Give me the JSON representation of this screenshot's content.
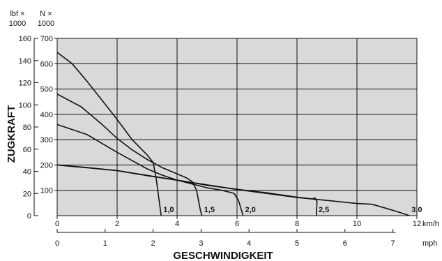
{
  "chart_data": {
    "type": "line",
    "title": "",
    "ylabel": "ZUGKRAFT",
    "xlabel": "GESCHWINDIGKEIT",
    "grid": true,
    "colors": {
      "plot_background": "#d9d9d9",
      "line": "#111111",
      "grid": "#111111"
    },
    "x_axis_kmh": {
      "unit": "km/h",
      "range": [
        0,
        12
      ],
      "ticks": [
        "0",
        "2",
        "4",
        "6",
        "8",
        "10",
        "12"
      ]
    },
    "x_axis_mph": {
      "unit": "mph",
      "range": [
        0,
        7.5
      ],
      "ticks": [
        "0",
        "1",
        "2",
        "3",
        "4",
        "5",
        "6",
        "7"
      ]
    },
    "y_axis_lbf": {
      "unit_lines": [
        "lbf ×",
        "1000"
      ],
      "range": [
        0,
        160
      ],
      "ticks": [
        "0",
        "20",
        "40",
        "60",
        "80",
        "100",
        "120",
        "140",
        "160"
      ]
    },
    "y_axis_n": {
      "unit_lines": [
        "N ×",
        "1000"
      ],
      "range": [
        0,
        700
      ],
      "ticks": [
        "100",
        "200",
        "300",
        "400",
        "500",
        "600",
        "700"
      ]
    },
    "x_units": "km/h",
    "y_units": "N × 1000",
    "series": [
      {
        "label": "1,0",
        "points": [
          [
            0,
            645
          ],
          [
            0.5,
            600
          ],
          [
            1,
            530
          ],
          [
            1.5,
            455
          ],
          [
            2,
            380
          ],
          [
            2.5,
            300
          ],
          [
            3,
            240
          ],
          [
            3.2,
            210
          ],
          [
            3.3,
            150
          ],
          [
            3.4,
            60
          ],
          [
            3.47,
            0
          ]
        ]
      },
      {
        "label": "1,5",
        "points": [
          [
            0,
            480
          ],
          [
            0.8,
            430
          ],
          [
            1.5,
            360
          ],
          [
            2,
            305
          ],
          [
            2.5,
            260
          ],
          [
            3,
            222
          ],
          [
            3.5,
            190
          ],
          [
            4,
            165
          ],
          [
            4.3,
            150
          ],
          [
            4.5,
            135
          ],
          [
            4.65,
            100
          ],
          [
            4.78,
            20
          ],
          [
            4.83,
            0
          ]
        ]
      },
      {
        "label": "2,0",
        "points": [
          [
            0,
            360
          ],
          [
            1,
            320
          ],
          [
            2,
            250
          ],
          [
            3,
            185
          ],
          [
            3.5,
            160
          ],
          [
            4,
            140
          ],
          [
            4.5,
            125
          ],
          [
            5,
            110
          ],
          [
            5.5,
            100
          ],
          [
            5.9,
            88
          ],
          [
            6.05,
            60
          ],
          [
            6.15,
            20
          ],
          [
            6.2,
            0
          ]
        ]
      },
      {
        "label": "2,5",
        "points": [
          [
            0,
            200
          ],
          [
            1,
            190
          ],
          [
            2,
            178
          ],
          [
            3,
            158
          ],
          [
            4,
            140
          ],
          [
            5,
            120
          ],
          [
            6,
            104
          ],
          [
            7,
            90
          ],
          [
            8,
            73
          ],
          [
            8.5,
            66
          ],
          [
            8.6,
            70
          ],
          [
            8.67,
            55
          ],
          [
            8.65,
            20
          ],
          [
            8.65,
            0
          ]
        ]
      },
      {
        "label": "3,0",
        "points": [
          [
            0,
            200
          ],
          [
            2,
            178
          ],
          [
            4,
            140
          ],
          [
            6,
            103
          ],
          [
            8,
            72
          ],
          [
            9,
            60
          ],
          [
            10,
            48
          ],
          [
            10.5,
            45
          ],
          [
            11,
            28
          ],
          [
            11.5,
            10
          ],
          [
            11.75,
            0
          ]
        ]
      }
    ]
  }
}
